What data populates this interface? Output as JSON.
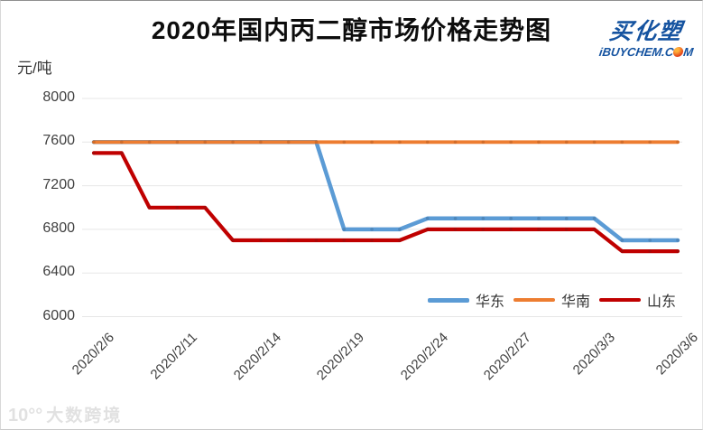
{
  "title": "2020年国内丙二醇市场价格走势图",
  "logo": {
    "brand": "买化塑",
    "domain_prefix": "iBUYCHEM.C",
    "domain_suffix": "M",
    "brand_color": "#1553a0"
  },
  "watermark": {
    "logo": "10°°",
    "text": "大数跨境"
  },
  "y_axis": {
    "unit": "元/吨",
    "ticks": [
      8000,
      7600,
      7200,
      6800,
      6400,
      6000
    ]
  },
  "chart_data": {
    "type": "line",
    "title": "2020年国内丙二醇市场价格走势图",
    "ylabel": "元/吨",
    "ylim": [
      6000,
      8000
    ],
    "grid": "horizontal",
    "legend_position": "bottom-right",
    "n_points": 22,
    "x_tick_labels": [
      "2020/2/6",
      "2020/2/11",
      "2020/2/14",
      "2020/2/19",
      "2020/2/24",
      "2020/2/27",
      "2020/3/3",
      "2020/3/6"
    ],
    "label_indices": [
      0,
      3,
      6,
      9,
      12,
      15,
      18,
      21
    ],
    "series": [
      {
        "name": "华东",
        "color": "#5B9BD5",
        "marker_color": "#41729f",
        "values": [
          7600,
          7600,
          7600,
          7600,
          7600,
          7600,
          7600,
          7600,
          7600,
          6800,
          6800,
          6800,
          6900,
          6900,
          6900,
          6900,
          6900,
          6900,
          6900,
          6700,
          6700,
          6700
        ]
      },
      {
        "name": "华南",
        "color": "#ED7D31",
        "marker_color": "#b85c20",
        "values": [
          7600,
          7600,
          7600,
          7600,
          7600,
          7600,
          7600,
          7600,
          7600,
          7600,
          7600,
          7600,
          7600,
          7600,
          7600,
          7600,
          7600,
          7600,
          7600,
          7600,
          7600,
          7600
        ]
      },
      {
        "name": "山东",
        "color": "#C00000",
        "marker_color": "#8f0d0d",
        "values": [
          7500,
          7500,
          7000,
          7000,
          7000,
          6700,
          6700,
          6700,
          6700,
          6700,
          6700,
          6700,
          6800,
          6800,
          6800,
          6800,
          6800,
          6800,
          6800,
          6600,
          6600,
          6600
        ]
      }
    ]
  }
}
